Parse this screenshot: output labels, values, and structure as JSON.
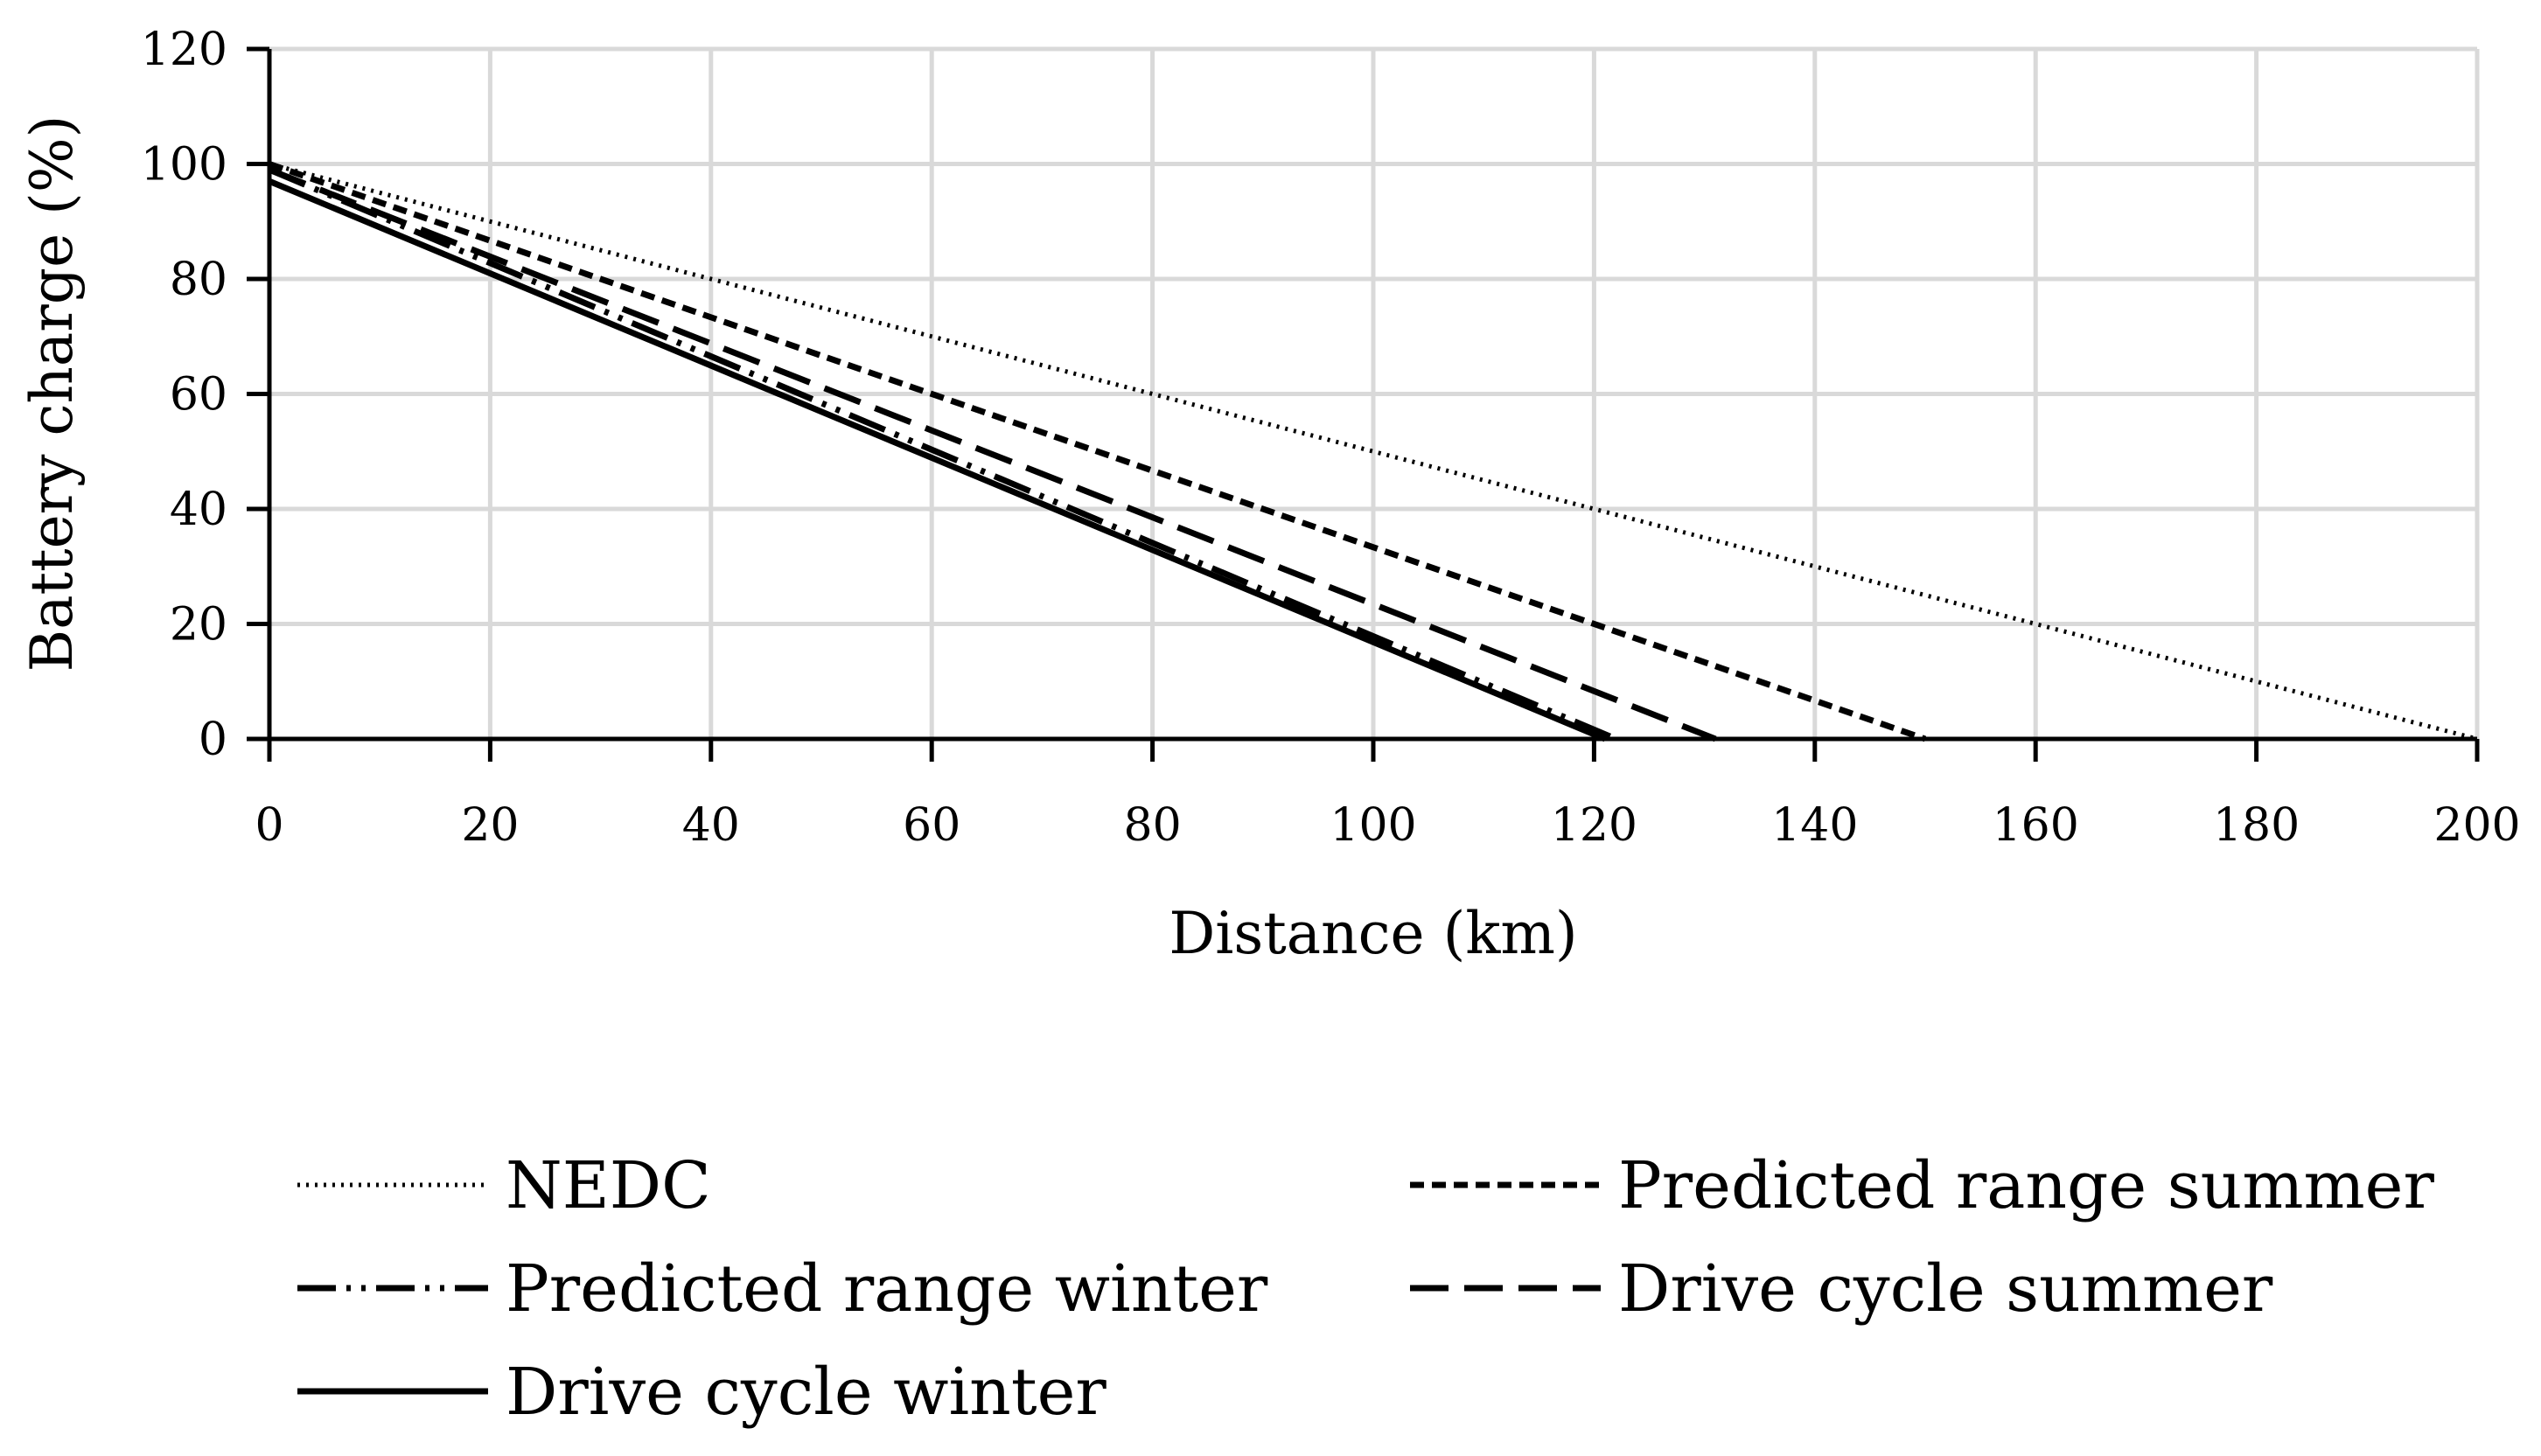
{
  "chart_data": {
    "type": "line",
    "title": "",
    "xlabel": "Distance (km)",
    "ylabel": "Battery charge (%)",
    "xlim": [
      0,
      200
    ],
    "ylim": [
      0,
      120
    ],
    "xticks": [
      0,
      20,
      40,
      60,
      80,
      100,
      120,
      140,
      160,
      180,
      200
    ],
    "yticks": [
      0,
      20,
      40,
      60,
      80,
      100,
      120
    ],
    "grid": true,
    "legend_position": "bottom",
    "series": [
      {
        "name": "NEDC",
        "style": "dotted",
        "color": "#000000",
        "x": [
          0,
          200
        ],
        "y": [
          100,
          0
        ]
      },
      {
        "name": "Predicted range summer",
        "style": "short-dash",
        "color": "#000000",
        "x": [
          0,
          150
        ],
        "y": [
          100,
          0
        ]
      },
      {
        "name": "Predicted range winter",
        "style": "dash-dot-dot",
        "color": "#000000",
        "x": [
          0,
          122
        ],
        "y": [
          99,
          0
        ]
      },
      {
        "name": "Drive cycle summer",
        "style": "long-dash",
        "color": "#000000",
        "x": [
          0,
          131
        ],
        "y": [
          99,
          0
        ]
      },
      {
        "name": "Drive cycle winter",
        "style": "solid",
        "color": "#000000",
        "x": [
          0,
          121
        ],
        "y": [
          97,
          0
        ]
      }
    ]
  }
}
